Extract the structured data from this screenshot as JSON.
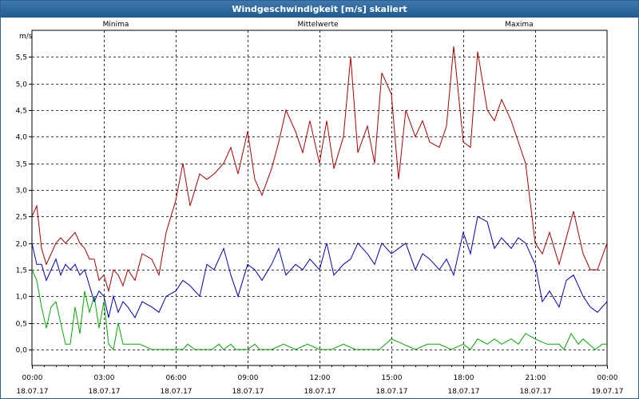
{
  "window": {
    "title": "Windgeschwindigkeit [m/s] skaliert"
  },
  "colors": {
    "minima": "#00aa00",
    "mittelwerte": "#0000bb",
    "maxima": "#aa0000",
    "grid": "#000000"
  },
  "chart_data": {
    "type": "line",
    "title": "Windgeschwindigkeit [m/s] skaliert",
    "ylabel": "m/s",
    "ylim": [
      -0.3,
      6.0
    ],
    "yticks": [
      "0,0",
      "0,5",
      "1,0",
      "1,5",
      "2,0",
      "2,5",
      "3,0",
      "3,5",
      "4,0",
      "4,5",
      "5,0",
      "5,5"
    ],
    "ytick_values": [
      0,
      0.5,
      1,
      1.5,
      2,
      2.5,
      3,
      3.5,
      4,
      4.5,
      5,
      5.5
    ],
    "xlim": [
      0,
      24
    ],
    "xticks": [
      {
        "time": "00:00",
        "date": "18.07.17",
        "hour": 0
      },
      {
        "time": "03:00",
        "date": "18.07.17",
        "hour": 3
      },
      {
        "time": "06:00",
        "date": "18.07.17",
        "hour": 6
      },
      {
        "time": "09:00",
        "date": "18.07.17",
        "hour": 9
      },
      {
        "time": "12:00",
        "date": "18.07.17",
        "hour": 12
      },
      {
        "time": "15:00",
        "date": "18.07.17",
        "hour": 15
      },
      {
        "time": "18:00",
        "date": "18.07.17",
        "hour": 18
      },
      {
        "time": "21:00",
        "date": "18.07.17",
        "hour": 21
      },
      {
        "time": "00:00",
        "date": "19.07.17",
        "hour": 24
      }
    ],
    "grid": true,
    "legend": [
      "Minima",
      "Mittelwerte",
      "Maxima"
    ],
    "series": [
      {
        "name": "Minima",
        "x": [
          0.0,
          0.2,
          0.4,
          0.6,
          0.8,
          1.0,
          1.2,
          1.4,
          1.6,
          1.8,
          2.0,
          2.2,
          2.4,
          2.6,
          2.8,
          3.0,
          3.2,
          3.4,
          3.6,
          3.8,
          4.0,
          4.5,
          5.0,
          5.5,
          6.0,
          6.3,
          6.5,
          6.8,
          7.0,
          7.5,
          7.8,
          8.0,
          8.3,
          8.5,
          9.0,
          9.3,
          9.5,
          10.0,
          10.5,
          11.0,
          11.5,
          12.0,
          12.5,
          13.0,
          13.5,
          14.0,
          14.5,
          15.0,
          15.5,
          16.0,
          16.5,
          17.0,
          17.5,
          18.0,
          18.3,
          18.6,
          19.0,
          19.3,
          19.6,
          20.0,
          20.3,
          20.6,
          21.0,
          21.5,
          22.0,
          22.2,
          22.5,
          22.8,
          23.0,
          23.5,
          23.8,
          24.0
        ],
        "values": [
          1.5,
          1.3,
          0.8,
          0.4,
          0.8,
          0.9,
          0.5,
          0.1,
          0.1,
          0.8,
          0.3,
          1.1,
          0.7,
          1.0,
          0.4,
          0.9,
          0.1,
          0.0,
          0.5,
          0.1,
          0.1,
          0.1,
          0.0,
          0.0,
          0.0,
          0.0,
          0.1,
          0.0,
          0.0,
          0.0,
          0.1,
          0.0,
          0.1,
          0.0,
          0.0,
          0.1,
          0.0,
          0.0,
          0.1,
          0.0,
          0.1,
          0.0,
          0.0,
          0.1,
          0.0,
          0.0,
          0.0,
          0.2,
          0.1,
          0.0,
          0.1,
          0.1,
          0.0,
          0.1,
          0.0,
          0.2,
          0.1,
          0.2,
          0.1,
          0.2,
          0.1,
          0.3,
          0.2,
          0.1,
          0.1,
          0.0,
          0.3,
          0.1,
          0.2,
          0.0,
          0.1,
          0.1
        ]
      },
      {
        "name": "Mittelwerte",
        "x": [
          0.0,
          0.2,
          0.4,
          0.6,
          0.8,
          1.0,
          1.2,
          1.4,
          1.6,
          1.8,
          2.0,
          2.2,
          2.4,
          2.6,
          2.8,
          3.0,
          3.2,
          3.4,
          3.6,
          3.8,
          4.0,
          4.3,
          4.6,
          5.0,
          5.3,
          5.6,
          6.0,
          6.3,
          6.6,
          7.0,
          7.3,
          7.6,
          8.0,
          8.3,
          8.6,
          9.0,
          9.3,
          9.6,
          10.0,
          10.3,
          10.6,
          11.0,
          11.3,
          11.6,
          12.0,
          12.3,
          12.6,
          13.0,
          13.3,
          13.6,
          14.0,
          14.3,
          14.6,
          15.0,
          15.3,
          15.6,
          16.0,
          16.3,
          16.6,
          17.0,
          17.3,
          17.6,
          18.0,
          18.3,
          18.6,
          19.0,
          19.3,
          19.6,
          20.0,
          20.3,
          20.6,
          21.0,
          21.3,
          21.6,
          22.0,
          22.3,
          22.6,
          23.0,
          23.3,
          23.6,
          24.0
        ],
        "values": [
          2.0,
          1.6,
          1.6,
          1.3,
          1.5,
          1.7,
          1.4,
          1.6,
          1.5,
          1.6,
          1.4,
          1.5,
          1.2,
          0.9,
          1.1,
          1.0,
          0.6,
          1.0,
          0.7,
          0.9,
          0.8,
          0.6,
          0.9,
          0.8,
          0.7,
          1.0,
          1.1,
          1.3,
          1.2,
          1.0,
          1.6,
          1.5,
          1.9,
          1.4,
          1.0,
          1.6,
          1.5,
          1.3,
          1.6,
          1.9,
          1.4,
          1.6,
          1.5,
          1.7,
          1.5,
          2.0,
          1.4,
          1.6,
          1.7,
          2.0,
          1.8,
          1.6,
          2.0,
          1.8,
          1.9,
          2.0,
          1.5,
          1.8,
          1.7,
          1.5,
          1.7,
          1.4,
          2.2,
          1.8,
          2.5,
          2.4,
          1.9,
          2.1,
          1.9,
          2.1,
          2.0,
          1.6,
          0.9,
          1.1,
          0.8,
          1.3,
          1.4,
          1.0,
          0.8,
          0.7,
          0.9
        ]
      },
      {
        "name": "Maxima",
        "x": [
          0.0,
          0.2,
          0.4,
          0.6,
          0.8,
          1.0,
          1.2,
          1.4,
          1.6,
          1.8,
          2.0,
          2.2,
          2.4,
          2.6,
          2.8,
          3.0,
          3.2,
          3.4,
          3.6,
          3.8,
          4.0,
          4.3,
          4.6,
          5.0,
          5.3,
          5.6,
          6.0,
          6.3,
          6.6,
          7.0,
          7.3,
          7.6,
          8.0,
          8.3,
          8.6,
          9.0,
          9.3,
          9.6,
          10.0,
          10.3,
          10.6,
          11.0,
          11.3,
          11.6,
          12.0,
          12.3,
          12.6,
          13.0,
          13.3,
          13.6,
          14.0,
          14.3,
          14.6,
          15.0,
          15.3,
          15.6,
          16.0,
          16.3,
          16.6,
          17.0,
          17.3,
          17.6,
          18.0,
          18.3,
          18.6,
          19.0,
          19.3,
          19.6,
          20.0,
          20.3,
          20.6,
          21.0,
          21.3,
          21.6,
          22.0,
          22.3,
          22.6,
          23.0,
          23.3,
          23.6,
          24.0
        ],
        "values": [
          2.5,
          2.7,
          1.9,
          1.6,
          1.8,
          2.0,
          2.1,
          2.0,
          2.1,
          2.2,
          2.0,
          1.9,
          1.7,
          1.7,
          1.3,
          1.4,
          1.1,
          1.5,
          1.4,
          1.2,
          1.5,
          1.3,
          1.8,
          1.7,
          1.4,
          2.2,
          2.8,
          3.5,
          2.7,
          3.3,
          3.2,
          3.3,
          3.5,
          3.8,
          3.3,
          4.1,
          3.2,
          2.9,
          3.4,
          3.9,
          4.5,
          4.1,
          3.7,
          4.3,
          3.5,
          4.3,
          3.4,
          4.0,
          5.5,
          3.7,
          4.2,
          3.5,
          5.2,
          4.8,
          3.2,
          4.5,
          4.0,
          4.3,
          3.9,
          3.8,
          4.2,
          5.7,
          3.9,
          3.8,
          5.6,
          4.5,
          4.3,
          4.7,
          4.3,
          3.9,
          3.5,
          2.0,
          1.8,
          2.2,
          1.6,
          2.1,
          2.6,
          1.8,
          1.5,
          1.5,
          2.0
        ]
      }
    ]
  }
}
